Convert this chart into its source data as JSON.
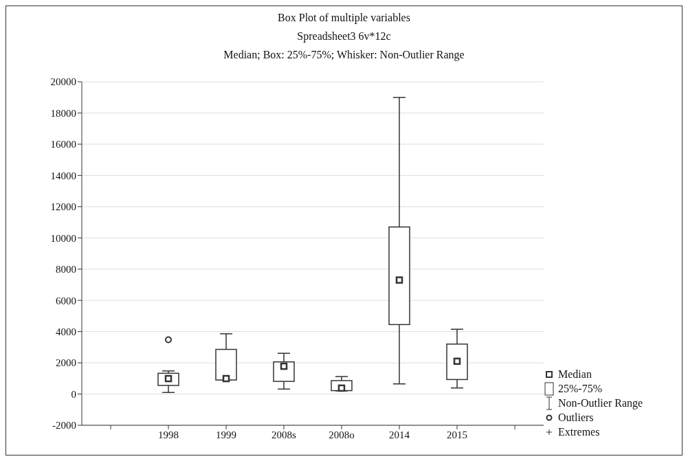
{
  "chart_data": {
    "type": "box",
    "title": "Box Plot of multiple variables",
    "subtitle": "Spreadsheet3 6v*12c",
    "annotations": [
      "Median; Box: 25%-75%; Whisker: Non-Outlier Range",
      "Median",
      "25%-75%",
      "Non-Outlier Range",
      "Outliers",
      "Extremes"
    ],
    "categories": [
      null,
      "1998",
      "1999",
      "2008s",
      "2008o",
      "2014",
      "2015",
      null
    ],
    "color": "#333333",
    "boxes": [
      null,
      {
        "low": 100,
        "q1": 550,
        "median": 990,
        "q3": 1330,
        "high": 1480,
        "outliers": [
          3480
        ]
      },
      {
        "low": 900,
        "q1": 900,
        "median": 990,
        "q3": 2860,
        "high": 3860
      },
      {
        "low": 320,
        "q1": 810,
        "median": 1780,
        "q3": 2060,
        "high": 2610
      },
      {
        "low": 200,
        "q1": 220,
        "median": 380,
        "q3": 860,
        "high": 1120
      },
      {
        "low": 650,
        "q1": 4450,
        "median": 7300,
        "q3": 10700,
        "high": 19000
      },
      {
        "low": 390,
        "q1": 930,
        "median": 2100,
        "q3": 3200,
        "high": 4150
      },
      null
    ],
    "ylim": [
      -2000,
      20000
    ],
    "yticks": [
      -2000,
      0,
      2000,
      4000,
      6000,
      8000,
      10000,
      12000,
      14000,
      16000,
      18000,
      20000
    ],
    "grid": "y"
  }
}
